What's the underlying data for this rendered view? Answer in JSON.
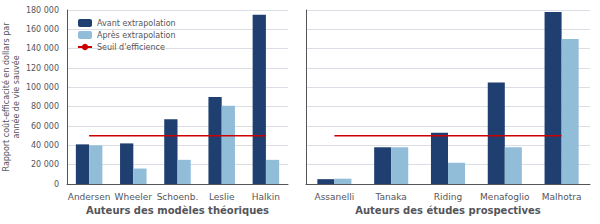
{
  "chart_data": [
    {
      "type": "bar",
      "categories": [
        "Andersen",
        "Wheeler",
        "Schoenb.",
        "Leslie",
        "Halkin"
      ],
      "series": [
        {
          "name": "Avant extrapolation",
          "color": "#1E3F6F",
          "values": [
            41000,
            42000,
            67000,
            90000,
            175000
          ]
        },
        {
          "name": "Après extrapolation",
          "color": "#92BDD9",
          "values": [
            40000,
            16000,
            25000,
            81000,
            25000
          ]
        },
        {
          "name": "Seuil d'efficience",
          "type": "line",
          "color": "#CC0000",
          "values": [
            50000,
            50000,
            50000,
            50000,
            50000
          ]
        }
      ],
      "xlabel": "Auteurs des modèles théoriques",
      "ylabel": "Rapport coût-efficacité en dollars par\nannée de vie sauvée",
      "ylim": [
        0,
        180000
      ],
      "yticks": [
        0,
        {
          "value": 20000,
          "label": "20 000"
        },
        {
          "value": 40000,
          "label": "40 000"
        },
        {
          "value": 60000,
          "label": "60 000"
        },
        {
          "value": 80000,
          "label": "80 000"
        },
        {
          "value": 100000,
          "label": "100 000"
        },
        {
          "value": 120000,
          "label": "120 000"
        },
        {
          "value": 140000,
          "label": "140 000"
        },
        {
          "value": 160000,
          "label": "160 000"
        },
        {
          "value": 180000,
          "label": "180 000"
        }
      ],
      "grid": true,
      "legend": "upper left"
    },
    {
      "type": "bar",
      "categories": [
        "Assanelli",
        "Tanaka",
        "Riding",
        "Menafoglio",
        "Malhotra"
      ],
      "series": [
        {
          "name": "Avant extrapolation",
          "color": "#1E3F6F",
          "values": [
            5000,
            38000,
            53000,
            105000,
            178000
          ]
        },
        {
          "name": "Après extrapolation",
          "color": "#92BDD9",
          "values": [
            5500,
            38000,
            22000,
            38000,
            150000
          ]
        },
        {
          "name": "Seuil d'efficience",
          "type": "line",
          "color": "#CC0000",
          "values": [
            50000,
            50000,
            50000,
            50000,
            50000
          ]
        }
      ],
      "xlabel": "Auteurs des études prospectives",
      "ylim": [
        0,
        180000
      ],
      "yticks": [
        0,
        20000,
        40000,
        60000,
        80000,
        100000,
        120000,
        140000,
        160000,
        180000
      ],
      "grid": true,
      "tick_labels": "x"
    }
  ]
}
